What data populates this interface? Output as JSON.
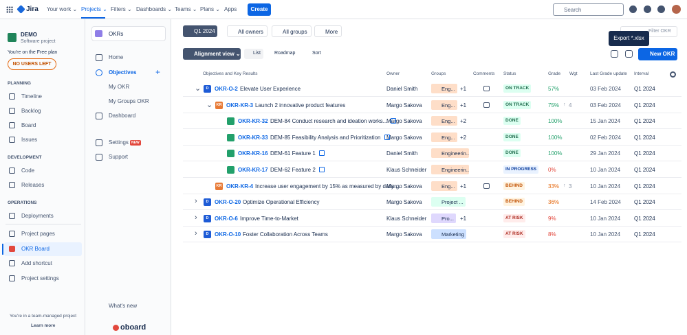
{
  "topnav": {
    "product": "Jira",
    "items": [
      "Your work",
      "Projects",
      "Filters",
      "Dashboards",
      "Teams",
      "Plans",
      "Apps"
    ],
    "create": "Create",
    "search": "Search"
  },
  "sidebar": {
    "project": "DEMO",
    "project_type": "Software project",
    "plan_note": "You're on the Free plan",
    "users_button": "NO USERS LEFT",
    "sections": [
      {
        "title": "PLANNING",
        "items": [
          "Timeline",
          "Backlog",
          "Board",
          "Issues"
        ]
      },
      {
        "title": "DEVELOPMENT",
        "items": [
          "Code",
          "Releases"
        ]
      },
      {
        "title": "OPERATIONS",
        "items": [
          "Deployments"
        ]
      }
    ],
    "bottom_items": [
      "Project pages",
      "OKR Board",
      "Add shortcut",
      "Project settings"
    ],
    "footer": "You're in a team-managed project",
    "learn_more": "Learn more"
  },
  "app_nav": {
    "app": "OKRs",
    "items": [
      "Home",
      "Objectives",
      "My OKR",
      "My Groups OKR",
      "Dashboard",
      "Settings",
      "Support"
    ],
    "new_badge": "NEW",
    "whats_new": "What's new",
    "brand": "oboard"
  },
  "toolbar": {
    "period": "Q1 2024",
    "filters": [
      "All owners",
      "All groups",
      "More"
    ],
    "search": "Filter OKR",
    "tooltip": "Export *.xlsx",
    "view": "Alignment view",
    "list": "List",
    "roadmap": "Roadmap",
    "sort": "Sort",
    "new_button": "New OKR"
  },
  "table": {
    "columns": [
      "Objectives and Key Results",
      "Owner",
      "Groups",
      "Comments",
      "Status",
      "Grade",
      "Wgt",
      "Last Grade update",
      "Interval"
    ],
    "rows": [
      {
        "icon": "D",
        "key": "OKR-O-2",
        "title": "Elevate User Experience",
        "owner": "Daniel Smith",
        "group": "Eng...",
        "extra": "+1",
        "status": "ON TRACK",
        "status_color": "#216e4e",
        "status_bg": "#dcfff1",
        "grade": "57%",
        "grade_color": "#22a06b",
        "change": "",
        "updated": "03 Feb 2024",
        "interval": "Q1 2024"
      },
      {
        "icon": "KR",
        "key": "OKR-KR-3",
        "title": "Launch 2 innovative product features",
        "owner": "Margo Sakova",
        "group": "Eng...",
        "extra": "+1",
        "status": "ON TRACK",
        "status_color": "#216e4e",
        "status_bg": "#dcfff1",
        "grade": "75%",
        "grade_color": "#22a06b",
        "change": "4",
        "updated": "03 Feb 2024",
        "interval": "Q1 2024"
      },
      {
        "icon": "",
        "key": "OKR-KR-32",
        "title": "DEM-84 Conduct research and ideation works...",
        "owner": "Margo Sakova",
        "group": "Eng...",
        "extra": "+2",
        "status": "DONE",
        "status_color": "#216e4e",
        "status_bg": "#dcfff1",
        "grade": "100%",
        "grade_color": "#22a06b",
        "change": "",
        "updated": "15 Jan 2024",
        "interval": "Q1 2024"
      },
      {
        "icon": "",
        "key": "OKR-KR-33",
        "title": "DEM-85 Feasibility Analysis and Prioritization",
        "owner": "Margo Sakova",
        "group": "Eng...",
        "extra": "+2",
        "status": "DONE",
        "status_color": "#216e4e",
        "status_bg": "#dcfff1",
        "grade": "100%",
        "grade_color": "#22a06b",
        "change": "",
        "updated": "02 Feb 2024",
        "interval": "Q1 2024"
      },
      {
        "icon": "",
        "key": "OKR-KR-16",
        "title": "DEM-61 Feature 1",
        "owner": "Daniel Smith",
        "group": "Engineerin...",
        "extra": "",
        "status": "DONE",
        "status_color": "#216e4e",
        "status_bg": "#dcfff1",
        "grade": "100%",
        "grade_color": "#22a06b",
        "change": "",
        "updated": "29 Jan 2024",
        "interval": "Q1 2024"
      },
      {
        "icon": "",
        "key": "OKR-KR-17",
        "title": "DEM-62 Feature 2",
        "owner": "Klaus Schneider",
        "group": "Engineerin...",
        "extra": "",
        "status": "IN PROGRESS",
        "status_color": "#0c3e9e",
        "status_bg": "#e9f2ff",
        "grade": "0%",
        "grade_color": "#e2483d",
        "change": "",
        "updated": "10 Jan 2024",
        "interval": "Q1 2024"
      },
      {
        "icon": "KR",
        "key": "OKR-KR-4",
        "title": "Increase user engagement by 15% as measured by daily ...",
        "owner": "Margo Sakova",
        "group": "Eng...",
        "extra": "+1",
        "status": "BEHIND",
        "status_color": "#c25100",
        "status_bg": "#fff3e0",
        "grade": "33%",
        "grade_color": "#e56910",
        "change": "3",
        "updated": "10 Jan 2024",
        "interval": "Q1 2024"
      },
      {
        "icon": "D",
        "key": "OKR-O-20",
        "title": "Optimize Operational Efficiency",
        "owner": "Margo Sakova",
        "group": "Project ...",
        "extra": "",
        "status": "BEHIND",
        "status_color": "#c25100",
        "status_bg": "#fff3e0",
        "grade": "36%",
        "grade_color": "#e56910",
        "change": "",
        "updated": "14 Feb 2024",
        "interval": "Q1 2024"
      },
      {
        "icon": "D",
        "key": "OKR-O-6",
        "title": "Improve Time-to-Market",
        "owner": "Klaus Schneider",
        "group": "Pro...",
        "extra": "+1",
        "status": "AT RISK",
        "status_color": "#ae2e24",
        "status_bg": "#ffeceb",
        "grade": "9%",
        "grade_color": "#e2483d",
        "change": "",
        "updated": "10 Jan 2024",
        "interval": "Q1 2024"
      },
      {
        "icon": "D",
        "key": "OKR-O-10",
        "title": "Foster Collaboration Across Teams",
        "owner": "Margo Sakova",
        "group": "Marketing",
        "extra": "",
        "status": "AT RISK",
        "status_color": "#ae2e24",
        "status_bg": "#ffeceb",
        "grade": "8%",
        "grade_color": "#e2483d",
        "change": "",
        "updated": "10 Jan 2024",
        "interval": "Q1 2024"
      }
    ]
  }
}
